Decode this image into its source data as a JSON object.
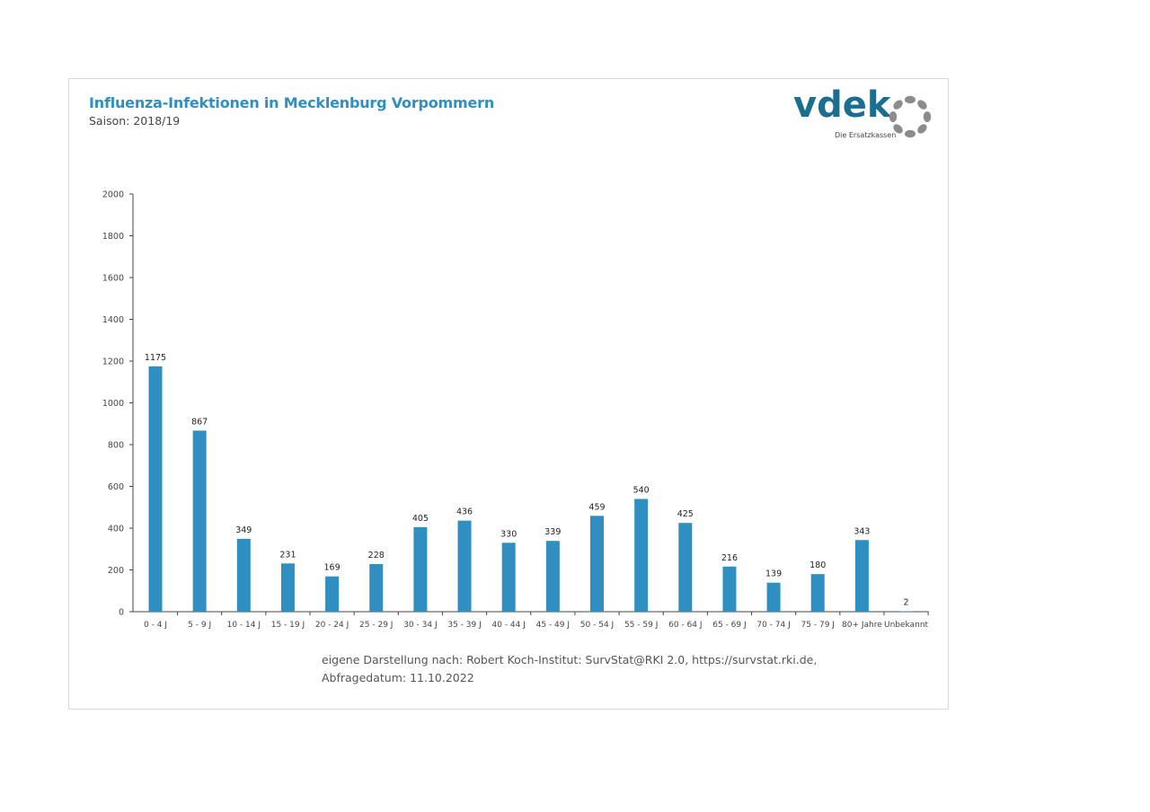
{
  "header": {
    "title": "Influenza-Infektionen in Mecklenburg Vorpommern",
    "subtitle": "Saison: 2018/19"
  },
  "logo": {
    "wordmark": "vdek",
    "tagline": "Die Ersatzkassen",
    "icon": "dotted-ring-icon",
    "colors": {
      "wordmark": "#1b6e8f",
      "ring": "#8c8c8c"
    }
  },
  "source_note": "eigene Darstellung nach: Robert Koch-Institut: SurvStat@RKI 2.0, https://survstat.rki.de, Abfragedatum: 11.10.2022",
  "chart_data": {
    "type": "bar",
    "title": "Influenza-Infektionen in Mecklenburg Vorpommern",
    "subtitle": "Saison: 2018/19",
    "xlabel": "",
    "ylabel": "",
    "ylim": [
      0,
      2000
    ],
    "yticks": [
      0,
      200,
      400,
      600,
      800,
      1000,
      1200,
      1400,
      1600,
      1800,
      2000
    ],
    "grid": false,
    "legend": "none",
    "bar_color": "#2e8fc0",
    "categories": [
      "0 - 4 J",
      "5 - 9 J",
      "10 - 14 J",
      "15 - 19 J",
      "20 - 24 J",
      "25 - 29 J",
      "30 - 34 J",
      "35 - 39 J",
      "40 - 44 J",
      "45 - 49 J",
      "50 - 54 J",
      "55 - 59 J",
      "60 - 64 J",
      "65 - 69 J",
      "70 - 74 J",
      "75 - 79 J",
      "80+ Jahre",
      "Unbekannt"
    ],
    "values": [
      1175,
      867,
      349,
      231,
      169,
      228,
      405,
      436,
      330,
      339,
      459,
      540,
      425,
      216,
      139,
      180,
      343,
      2
    ]
  }
}
